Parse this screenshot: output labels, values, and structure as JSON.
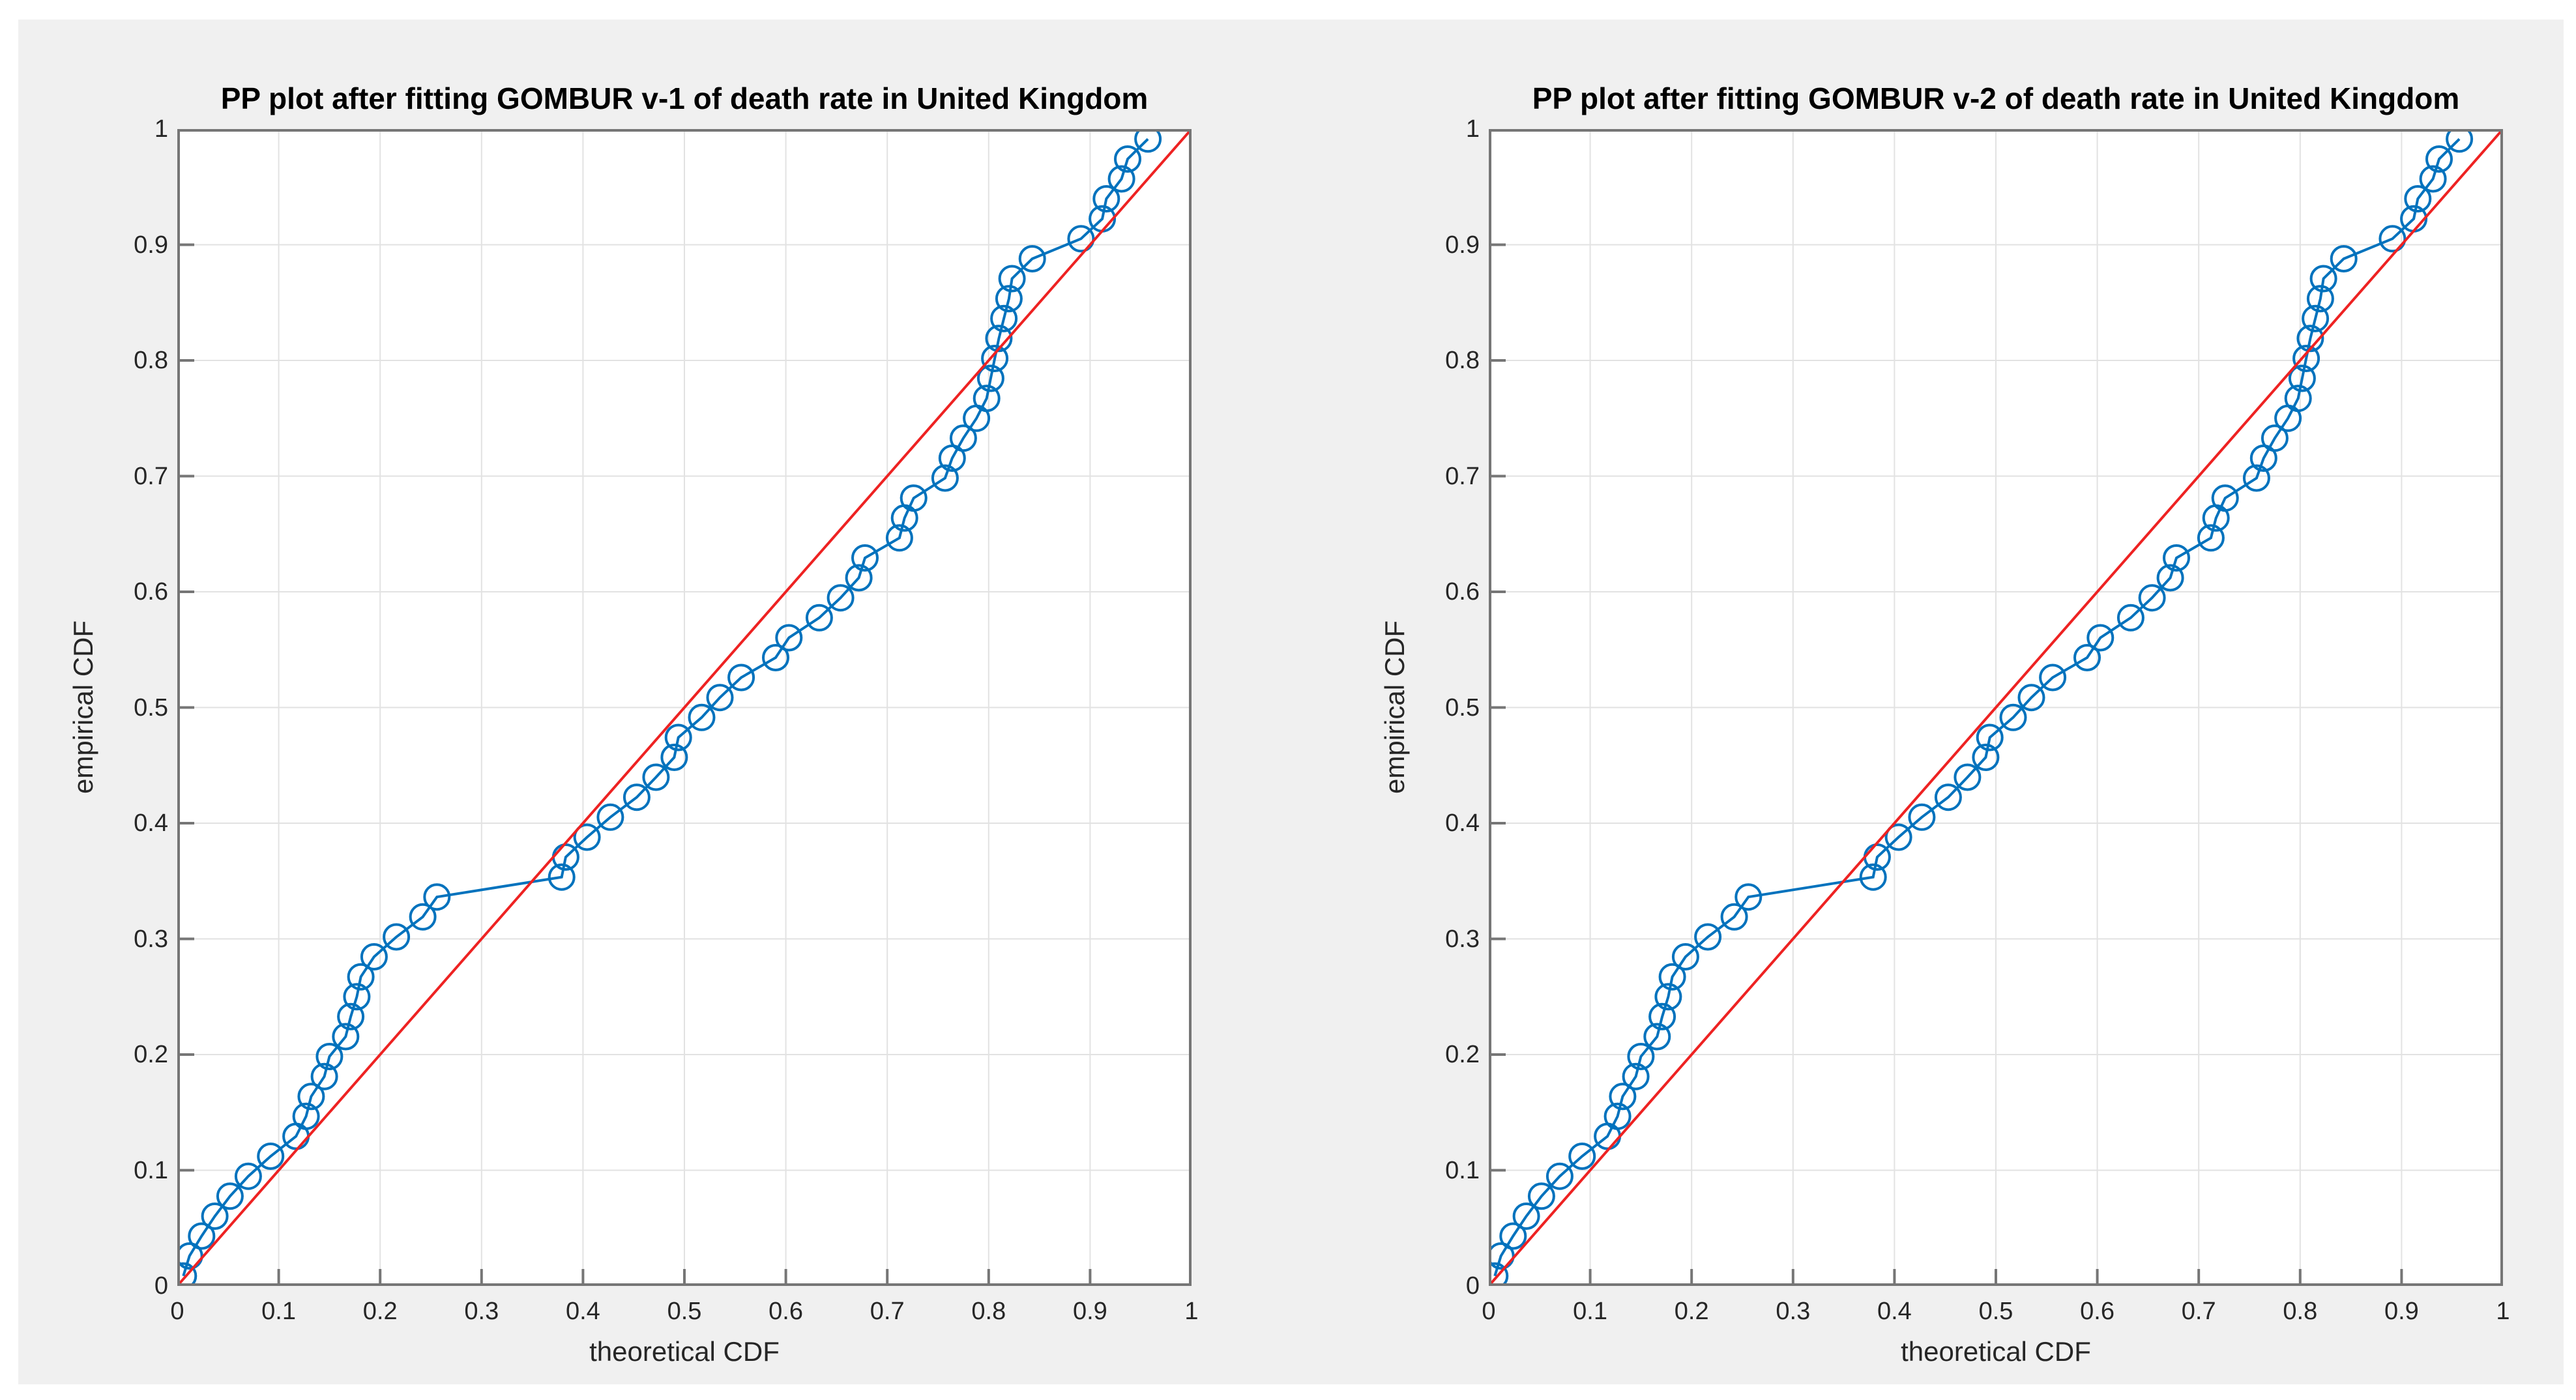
{
  "figure": {
    "background_color": "#f0f0f0",
    "page_background_color": "#ffffff"
  },
  "colors": {
    "series_blue": "#0072bd",
    "reference_red": "#ee2222",
    "grid": "#e2e2e2",
    "axis": "#767676",
    "tick_text": "#262626",
    "title_text": "#000000"
  },
  "panels": [
    {
      "title": "PP plot after fitting GOMBUR v-1 of death rate in United Kingdom",
      "xlabel": "theoretical CDF",
      "ylabel": "empirical CDF",
      "x_ticks": [
        "0",
        "0.1",
        "0.2",
        "0.3",
        "0.4",
        "0.5",
        "0.6",
        "0.7",
        "0.8",
        "0.9",
        "1"
      ],
      "y_ticks": [
        "0",
        "0.1",
        "0.2",
        "0.3",
        "0.4",
        "0.5",
        "0.6",
        "0.7",
        "0.8",
        "0.9",
        "1"
      ]
    },
    {
      "title": "PP plot after fitting GOMBUR v-2 of death rate in United Kingdom",
      "xlabel": "theoretical CDF",
      "ylabel": "empirical CDF",
      "x_ticks": [
        "0",
        "0.1",
        "0.2",
        "0.3",
        "0.4",
        "0.5",
        "0.6",
        "0.7",
        "0.8",
        "0.9",
        "1"
      ],
      "y_ticks": [
        "0",
        "0.1",
        "0.2",
        "0.3",
        "0.4",
        "0.5",
        "0.6",
        "0.7",
        "0.8",
        "0.9",
        "1"
      ]
    }
  ],
  "chart_data": [
    {
      "type": "scatter",
      "title": "PP plot after fitting GOMBUR v-1 of death rate in United Kingdom",
      "xlabel": "theoretical CDF",
      "ylabel": "empirical CDF",
      "xlim": [
        0,
        1
      ],
      "ylim": [
        0,
        1
      ],
      "grid": true,
      "legend": "none",
      "series": [
        {
          "name": "empirical-vs-theoretical-cdf-points",
          "style": "line+circle-markers",
          "color": "#0072bd",
          "x": [
            0.006,
            0.012,
            0.024,
            0.037,
            0.052,
            0.07,
            0.092,
            0.117,
            0.127,
            0.132,
            0.145,
            0.15,
            0.166,
            0.171,
            0.177,
            0.181,
            0.194,
            0.216,
            0.242,
            0.256,
            0.379,
            0.383,
            0.404,
            0.427,
            0.453,
            0.472,
            0.49,
            0.494,
            0.517,
            0.535,
            0.556,
            0.59,
            0.603,
            0.633,
            0.654,
            0.672,
            0.678,
            0.712,
            0.717,
            0.726,
            0.757,
            0.764,
            0.775,
            0.788,
            0.798,
            0.802,
            0.806,
            0.81,
            0.815,
            0.82,
            0.823,
            0.843,
            0.891,
            0.912,
            0.916,
            0.931,
            0.937,
            0.957
          ],
          "y": [
            0.0086,
            0.0259,
            0.0431,
            0.0603,
            0.0776,
            0.0948,
            0.1121,
            0.1293,
            0.1466,
            0.1638,
            0.181,
            0.1983,
            0.2155,
            0.2328,
            0.25,
            0.2672,
            0.2845,
            0.3017,
            0.319,
            0.3362,
            0.3534,
            0.3707,
            0.3879,
            0.4052,
            0.4224,
            0.4397,
            0.4569,
            0.4741,
            0.4914,
            0.5086,
            0.5259,
            0.5431,
            0.5603,
            0.5776,
            0.5948,
            0.6121,
            0.6293,
            0.6466,
            0.6638,
            0.681,
            0.6983,
            0.7155,
            0.7328,
            0.75,
            0.7672,
            0.7845,
            0.8017,
            0.819,
            0.8362,
            0.8534,
            0.8707,
            0.8879,
            0.9052,
            0.9224,
            0.9397,
            0.9569,
            0.9741,
            0.9914
          ]
        },
        {
          "name": "reference-diagonal-line",
          "style": "line",
          "color": "#ee2222",
          "x": [
            0,
            1
          ],
          "y": [
            0,
            1
          ]
        }
      ]
    },
    {
      "type": "scatter",
      "title": "PP plot after fitting GOMBUR v-2 of death rate in United Kingdom",
      "xlabel": "theoretical CDF",
      "ylabel": "empirical CDF",
      "xlim": [
        0,
        1
      ],
      "ylim": [
        0,
        1
      ],
      "grid": true,
      "legend": "none",
      "series": [
        {
          "name": "empirical-vs-theoretical-cdf-points",
          "style": "line+circle-markers",
          "color": "#0072bd",
          "x": [
            0.006,
            0.012,
            0.024,
            0.037,
            0.052,
            0.07,
            0.092,
            0.117,
            0.127,
            0.132,
            0.145,
            0.15,
            0.166,
            0.171,
            0.177,
            0.181,
            0.194,
            0.216,
            0.242,
            0.256,
            0.379,
            0.383,
            0.404,
            0.427,
            0.453,
            0.472,
            0.49,
            0.494,
            0.517,
            0.535,
            0.556,
            0.59,
            0.603,
            0.633,
            0.654,
            0.672,
            0.678,
            0.712,
            0.717,
            0.726,
            0.757,
            0.764,
            0.775,
            0.788,
            0.798,
            0.802,
            0.806,
            0.81,
            0.815,
            0.82,
            0.823,
            0.843,
            0.891,
            0.912,
            0.916,
            0.931,
            0.937,
            0.957
          ],
          "y": [
            0.0086,
            0.0259,
            0.0431,
            0.0603,
            0.0776,
            0.0948,
            0.1121,
            0.1293,
            0.1466,
            0.1638,
            0.181,
            0.1983,
            0.2155,
            0.2328,
            0.25,
            0.2672,
            0.2845,
            0.3017,
            0.319,
            0.3362,
            0.3534,
            0.3707,
            0.3879,
            0.4052,
            0.4224,
            0.4397,
            0.4569,
            0.4741,
            0.4914,
            0.5086,
            0.5259,
            0.5431,
            0.5603,
            0.5776,
            0.5948,
            0.6121,
            0.6293,
            0.6466,
            0.6638,
            0.681,
            0.6983,
            0.7155,
            0.7328,
            0.75,
            0.7672,
            0.7845,
            0.8017,
            0.819,
            0.8362,
            0.8534,
            0.8707,
            0.8879,
            0.9052,
            0.9224,
            0.9397,
            0.9569,
            0.9741,
            0.9914
          ]
        },
        {
          "name": "reference-diagonal-line",
          "style": "line",
          "color": "#ee2222",
          "x": [
            0,
            1
          ],
          "y": [
            0,
            1
          ]
        }
      ]
    }
  ]
}
